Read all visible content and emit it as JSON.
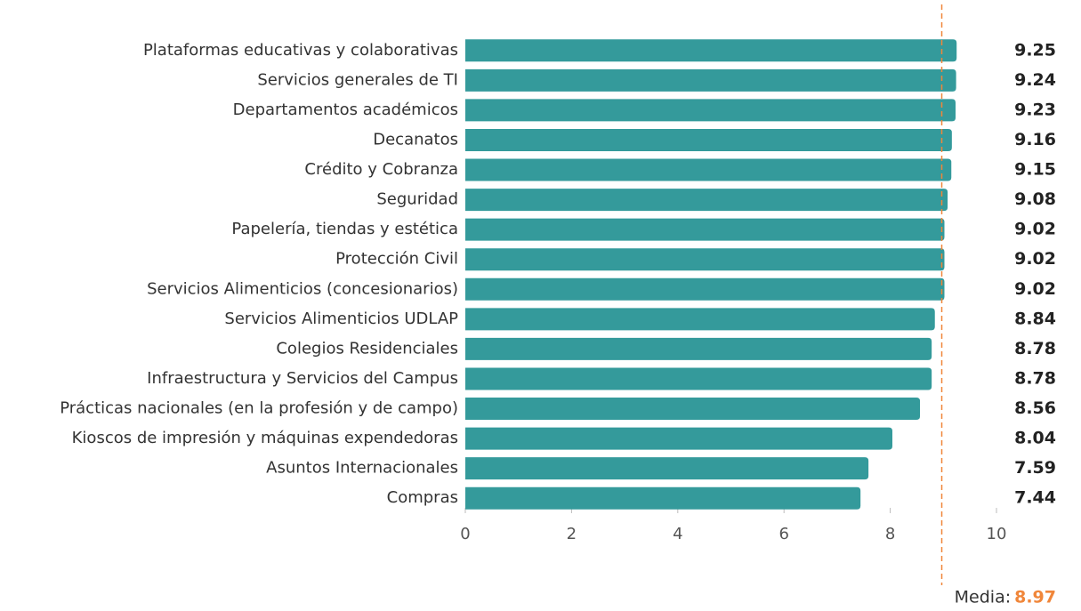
{
  "chart_data": {
    "type": "bar",
    "orientation": "horizontal",
    "categories": [
      "Plataformas educativas y colaborativas",
      "Servicios generales de TI",
      "Departamentos académicos",
      "Decanatos",
      "Crédito y Cobranza",
      "Seguridad",
      "Papelería, tiendas y estética",
      "Protección Civil",
      "Servicios Alimenticios (concesionarios)",
      "Servicios Alimenticios UDLAP",
      "Colegios Residenciales",
      "Infraestructura y Servicios del Campus",
      "Prácticas nacionales (en la profesión y de campo)",
      "Kioscos de impresión y máquinas expendedoras",
      "Asuntos Internacionales",
      "Compras"
    ],
    "values": [
      9.25,
      9.24,
      9.23,
      9.16,
      9.15,
      9.08,
      9.02,
      9.02,
      9.02,
      8.84,
      8.78,
      8.78,
      8.56,
      8.04,
      7.59,
      7.44
    ],
    "color": "#349a9b",
    "xlim": [
      0,
      10
    ],
    "xticks": [
      0,
      2,
      4,
      6,
      8,
      10
    ],
    "mean": {
      "label": "Media:",
      "value": 8.97,
      "color": "#f0863a"
    }
  }
}
